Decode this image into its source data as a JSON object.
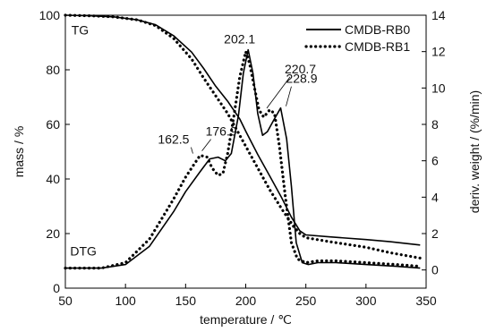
{
  "chart_data": {
    "type": "line",
    "xlabel": "temperature / ℃",
    "ylabel_left": "mass / %",
    "ylabel_right": "deriv. weight / (%/min)",
    "xlim": [
      50,
      350
    ],
    "ylim_left": [
      0,
      100
    ],
    "ylim_right": [
      -1,
      14
    ],
    "x_ticks": [
      "50",
      "100",
      "150",
      "200",
      "250",
      "300",
      "350"
    ],
    "y_left_ticks": [
      "0",
      "20",
      "40",
      "60",
      "80",
      "100"
    ],
    "y_right_ticks": [
      "0",
      "2",
      "4",
      "6",
      "8",
      "10",
      "12",
      "14"
    ],
    "grid": false,
    "legend_position": "top-right",
    "series": [
      {
        "name": "CMDB-RB0",
        "line_style": "solid",
        "curve": "TG",
        "axis": "left",
        "points": [
          [
            50,
            100
          ],
          [
            70,
            99.8
          ],
          [
            90,
            99.4
          ],
          [
            110,
            98.3
          ],
          [
            125,
            96.5
          ],
          [
            140,
            92.5
          ],
          [
            155,
            86.5
          ],
          [
            165,
            80.5
          ],
          [
            175,
            74
          ],
          [
            185,
            68.5
          ],
          [
            195,
            62
          ],
          [
            200,
            57.5
          ],
          [
            210,
            49
          ],
          [
            220,
            41
          ],
          [
            230,
            33
          ],
          [
            238,
            26
          ],
          [
            245,
            21
          ],
          [
            250,
            19.5
          ],
          [
            270,
            18.8
          ],
          [
            300,
            17.8
          ],
          [
            320,
            17
          ],
          [
            345,
            15.8
          ]
        ]
      },
      {
        "name": "CMDB-RB1",
        "line_style": "dotted",
        "curve": "TG",
        "axis": "left",
        "points": [
          [
            50,
            100
          ],
          [
            70,
            99.8
          ],
          [
            90,
            99.4
          ],
          [
            110,
            98.3
          ],
          [
            125,
            96.2
          ],
          [
            140,
            91.5
          ],
          [
            155,
            84
          ],
          [
            165,
            77
          ],
          [
            175,
            70.5
          ],
          [
            185,
            64
          ],
          [
            195,
            56
          ],
          [
            200,
            52
          ],
          [
            210,
            44
          ],
          [
            220,
            36
          ],
          [
            230,
            29
          ],
          [
            240,
            22.5
          ],
          [
            245,
            20
          ],
          [
            250,
            18.5
          ],
          [
            270,
            17
          ],
          [
            300,
            15
          ],
          [
            320,
            13
          ],
          [
            345,
            11
          ]
        ]
      },
      {
        "name": "CMDB-RB0",
        "line_style": "solid",
        "curve": "DTG",
        "axis": "right",
        "points": [
          [
            50,
            0.1
          ],
          [
            80,
            0.1
          ],
          [
            100,
            0.3
          ],
          [
            120,
            1.3
          ],
          [
            140,
            3.2
          ],
          [
            150,
            4.3
          ],
          [
            162,
            5.4
          ],
          [
            170,
            6.1
          ],
          [
            177,
            6.2
          ],
          [
            183,
            6
          ],
          [
            188,
            6.4
          ],
          [
            194,
            8.5
          ],
          [
            198,
            10.8
          ],
          [
            202,
            12.1
          ],
          [
            206,
            10.8
          ],
          [
            210,
            8.6
          ],
          [
            214,
            7.4
          ],
          [
            218,
            7.6
          ],
          [
            223,
            8.2
          ],
          [
            229,
            8.9
          ],
          [
            234,
            7.2
          ],
          [
            238,
            4.6
          ],
          [
            242,
            1.5
          ],
          [
            247,
            0.4
          ],
          [
            252,
            0.3
          ],
          [
            260,
            0.4
          ],
          [
            275,
            0.4
          ],
          [
            300,
            0.3
          ],
          [
            325,
            0.2
          ],
          [
            345,
            0.1
          ]
        ]
      },
      {
        "name": "CMDB-RB1",
        "line_style": "dotted",
        "curve": "DTG",
        "axis": "right",
        "points": [
          [
            50,
            0.1
          ],
          [
            80,
            0.1
          ],
          [
            100,
            0.4
          ],
          [
            120,
            1.7
          ],
          [
            140,
            3.9
          ],
          [
            150,
            5.1
          ],
          [
            157,
            5.8
          ],
          [
            162,
            6.3
          ],
          [
            168,
            6.2
          ],
          [
            172,
            5.6
          ],
          [
            177,
            5.2
          ],
          [
            181,
            5.3
          ],
          [
            185,
            6.4
          ],
          [
            190,
            8.4
          ],
          [
            195,
            10.6
          ],
          [
            200,
            12
          ],
          [
            203,
            11.4
          ],
          [
            207,
            10.1
          ],
          [
            211,
            8.8
          ],
          [
            215,
            8.4
          ],
          [
            220,
            8.8
          ],
          [
            224,
            8.6
          ],
          [
            228,
            6.8
          ],
          [
            233,
            4
          ],
          [
            238,
            1.5
          ],
          [
            243,
            0.6
          ],
          [
            250,
            0.4
          ],
          [
            260,
            0.5
          ],
          [
            275,
            0.5
          ],
          [
            300,
            0.4
          ],
          [
            325,
            0.3
          ],
          [
            345,
            0.2
          ]
        ]
      }
    ],
    "curve_labels": [
      {
        "text": "TG",
        "x": 55,
        "y_left": 93
      },
      {
        "text": "DTG",
        "x": 54,
        "y_left": 12
      }
    ],
    "peak_annotations": [
      {
        "text": "202.1",
        "x": 202,
        "y_right": 12.1,
        "axis": "right"
      },
      {
        "text": "220.7",
        "x": 219,
        "y_right": 8.5,
        "axis": "right"
      },
      {
        "text": "228.9",
        "x": 229,
        "y_right": 8.9,
        "axis": "right"
      },
      {
        "text": "176.9",
        "x": 177,
        "y_right": 6.2,
        "axis": "right"
      },
      {
        "text": "162.5",
        "x": 162,
        "y_right": 6.3,
        "axis": "right"
      }
    ]
  }
}
